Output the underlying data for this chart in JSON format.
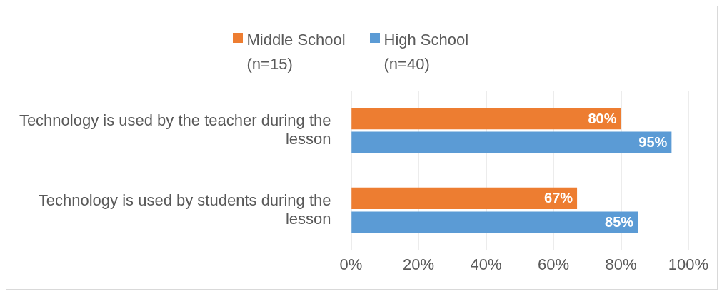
{
  "chart_data": {
    "type": "bar",
    "orientation": "horizontal",
    "categories": [
      "Technology is used by the teacher during the lesson",
      "Technology is used by students during the lesson"
    ],
    "series": [
      {
        "name": "Middle School (n=15)",
        "color": "#ed7d31",
        "values": [
          80,
          67
        ],
        "value_labels": [
          "80%",
          "67%"
        ]
      },
      {
        "name": "High School (n=40)",
        "color": "#5b9bd5",
        "values": [
          95,
          85
        ],
        "value_labels": [
          "95%",
          "85%"
        ]
      }
    ],
    "xlim": [
      0,
      100
    ],
    "xticks": [
      {
        "value": 0,
        "label": "0%"
      },
      {
        "value": 20,
        "label": "20%"
      },
      {
        "value": 40,
        "label": "40%"
      },
      {
        "value": 60,
        "label": "60%"
      },
      {
        "value": 80,
        "label": "80%"
      },
      {
        "value": 100,
        "label": "100%"
      }
    ],
    "grid": "x",
    "legend": "top"
  }
}
